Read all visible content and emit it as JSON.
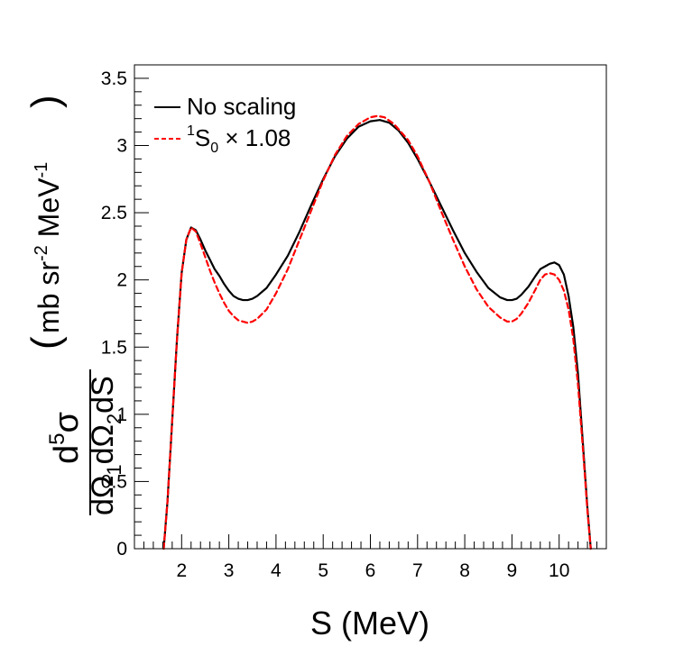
{
  "chart_data": {
    "type": "line",
    "x_axis": {
      "label": "S (MeV)",
      "range": [
        1.0,
        11.0
      ],
      "major_ticks": [
        2,
        3,
        4,
        5,
        6,
        7,
        8,
        9,
        10
      ],
      "tick_labels": [
        "2",
        "3",
        "4",
        "5",
        "6",
        "7",
        "8",
        "9",
        "10"
      ],
      "minor_step": 0.2
    },
    "y_axis": {
      "label": {
        "numerator": "d",
        "numerator_sup": "5",
        "numerator_tail": "σ",
        "denominator_parts": [
          "dΩ",
          "1",
          "dΩ",
          "2",
          "dS"
        ],
        "units_main": "mb sr",
        "units_sup1": "-2",
        "units_mid": "MeV",
        "units_sup2": "-1"
      },
      "range": [
        0,
        3.6
      ],
      "major_ticks": [
        0,
        0.5,
        1,
        1.5,
        2,
        2.5,
        3,
        3.5
      ],
      "tick_labels": [
        "0",
        "0.5",
        "1",
        "1.5",
        "2",
        "2.5",
        "3",
        "3.5"
      ],
      "minor_step": 0.1
    },
    "legend": {
      "position": "top-left",
      "entries": [
        {
          "label": "No scaling",
          "style": "solid",
          "color": "#000000"
        },
        {
          "label_sup": "1",
          "label_main": "S",
          "label_sub": "0",
          "label_rest": " × 1.08",
          "style": "dashed",
          "color": "#ff0000"
        }
      ]
    },
    "series": [
      {
        "name": "No scaling",
        "color": "#000000",
        "style": "solid",
        "points": [
          [
            1.62,
            0.0
          ],
          [
            1.7,
            0.35
          ],
          [
            1.8,
            0.95
          ],
          [
            1.9,
            1.55
          ],
          [
            2.0,
            2.05
          ],
          [
            2.1,
            2.3
          ],
          [
            2.2,
            2.39
          ],
          [
            2.3,
            2.37
          ],
          [
            2.4,
            2.3
          ],
          [
            2.5,
            2.22
          ],
          [
            2.6,
            2.15
          ],
          [
            2.7,
            2.08
          ],
          [
            2.8,
            2.03
          ],
          [
            2.9,
            1.97
          ],
          [
            3.0,
            1.92
          ],
          [
            3.1,
            1.88
          ],
          [
            3.2,
            1.86
          ],
          [
            3.3,
            1.85
          ],
          [
            3.4,
            1.85
          ],
          [
            3.5,
            1.86
          ],
          [
            3.6,
            1.88
          ],
          [
            3.8,
            1.94
          ],
          [
            4.0,
            2.04
          ],
          [
            4.25,
            2.18
          ],
          [
            4.5,
            2.36
          ],
          [
            4.75,
            2.56
          ],
          [
            5.0,
            2.75
          ],
          [
            5.25,
            2.92
          ],
          [
            5.5,
            3.05
          ],
          [
            5.75,
            3.14
          ],
          [
            6.0,
            3.18
          ],
          [
            6.2,
            3.19
          ],
          [
            6.4,
            3.17
          ],
          [
            6.6,
            3.11
          ],
          [
            6.8,
            3.02
          ],
          [
            7.0,
            2.9
          ],
          [
            7.25,
            2.73
          ],
          [
            7.5,
            2.55
          ],
          [
            7.75,
            2.37
          ],
          [
            8.0,
            2.2
          ],
          [
            8.25,
            2.06
          ],
          [
            8.5,
            1.94
          ],
          [
            8.75,
            1.87
          ],
          [
            8.9,
            1.85
          ],
          [
            9.0,
            1.85
          ],
          [
            9.1,
            1.86
          ],
          [
            9.2,
            1.89
          ],
          [
            9.35,
            1.95
          ],
          [
            9.5,
            2.03
          ],
          [
            9.6,
            2.08
          ],
          [
            9.7,
            2.1
          ],
          [
            9.8,
            2.12
          ],
          [
            9.9,
            2.13
          ],
          [
            10.0,
            2.11
          ],
          [
            10.1,
            2.04
          ],
          [
            10.2,
            1.88
          ],
          [
            10.3,
            1.65
          ],
          [
            10.4,
            1.3
          ],
          [
            10.5,
            0.8
          ],
          [
            10.6,
            0.3
          ],
          [
            10.67,
            0.0
          ]
        ]
      },
      {
        "name": "1S0 x 1.08",
        "color": "#ff0000",
        "style": "dashed",
        "points": [
          [
            1.62,
            0.0
          ],
          [
            1.7,
            0.35
          ],
          [
            1.8,
            0.95
          ],
          [
            1.9,
            1.55
          ],
          [
            2.0,
            2.05
          ],
          [
            2.1,
            2.3
          ],
          [
            2.2,
            2.39
          ],
          [
            2.3,
            2.36
          ],
          [
            2.4,
            2.27
          ],
          [
            2.5,
            2.17
          ],
          [
            2.6,
            2.07
          ],
          [
            2.7,
            1.98
          ],
          [
            2.8,
            1.9
          ],
          [
            2.9,
            1.83
          ],
          [
            3.0,
            1.77
          ],
          [
            3.1,
            1.73
          ],
          [
            3.2,
            1.7
          ],
          [
            3.3,
            1.69
          ],
          [
            3.4,
            1.68
          ],
          [
            3.5,
            1.69
          ],
          [
            3.6,
            1.71
          ],
          [
            3.8,
            1.78
          ],
          [
            4.0,
            1.9
          ],
          [
            4.25,
            2.08
          ],
          [
            4.5,
            2.3
          ],
          [
            4.75,
            2.52
          ],
          [
            5.0,
            2.74
          ],
          [
            5.25,
            2.93
          ],
          [
            5.5,
            3.07
          ],
          [
            5.75,
            3.16
          ],
          [
            6.0,
            3.21
          ],
          [
            6.15,
            3.22
          ],
          [
            6.3,
            3.21
          ],
          [
            6.5,
            3.16
          ],
          [
            6.8,
            3.04
          ],
          [
            7.0,
            2.92
          ],
          [
            7.25,
            2.73
          ],
          [
            7.5,
            2.51
          ],
          [
            7.75,
            2.3
          ],
          [
            8.0,
            2.1
          ],
          [
            8.25,
            1.93
          ],
          [
            8.5,
            1.8
          ],
          [
            8.75,
            1.72
          ],
          [
            8.9,
            1.69
          ],
          [
            9.0,
            1.69
          ],
          [
            9.1,
            1.71
          ],
          [
            9.2,
            1.75
          ],
          [
            9.35,
            1.83
          ],
          [
            9.5,
            1.93
          ],
          [
            9.6,
            2.0
          ],
          [
            9.7,
            2.04
          ],
          [
            9.8,
            2.05
          ],
          [
            9.9,
            2.04
          ],
          [
            10.0,
            2.0
          ],
          [
            10.1,
            1.92
          ],
          [
            10.2,
            1.78
          ],
          [
            10.3,
            1.56
          ],
          [
            10.4,
            1.22
          ],
          [
            10.5,
            0.76
          ],
          [
            10.6,
            0.28
          ],
          [
            10.67,
            0.0
          ]
        ]
      }
    ]
  }
}
